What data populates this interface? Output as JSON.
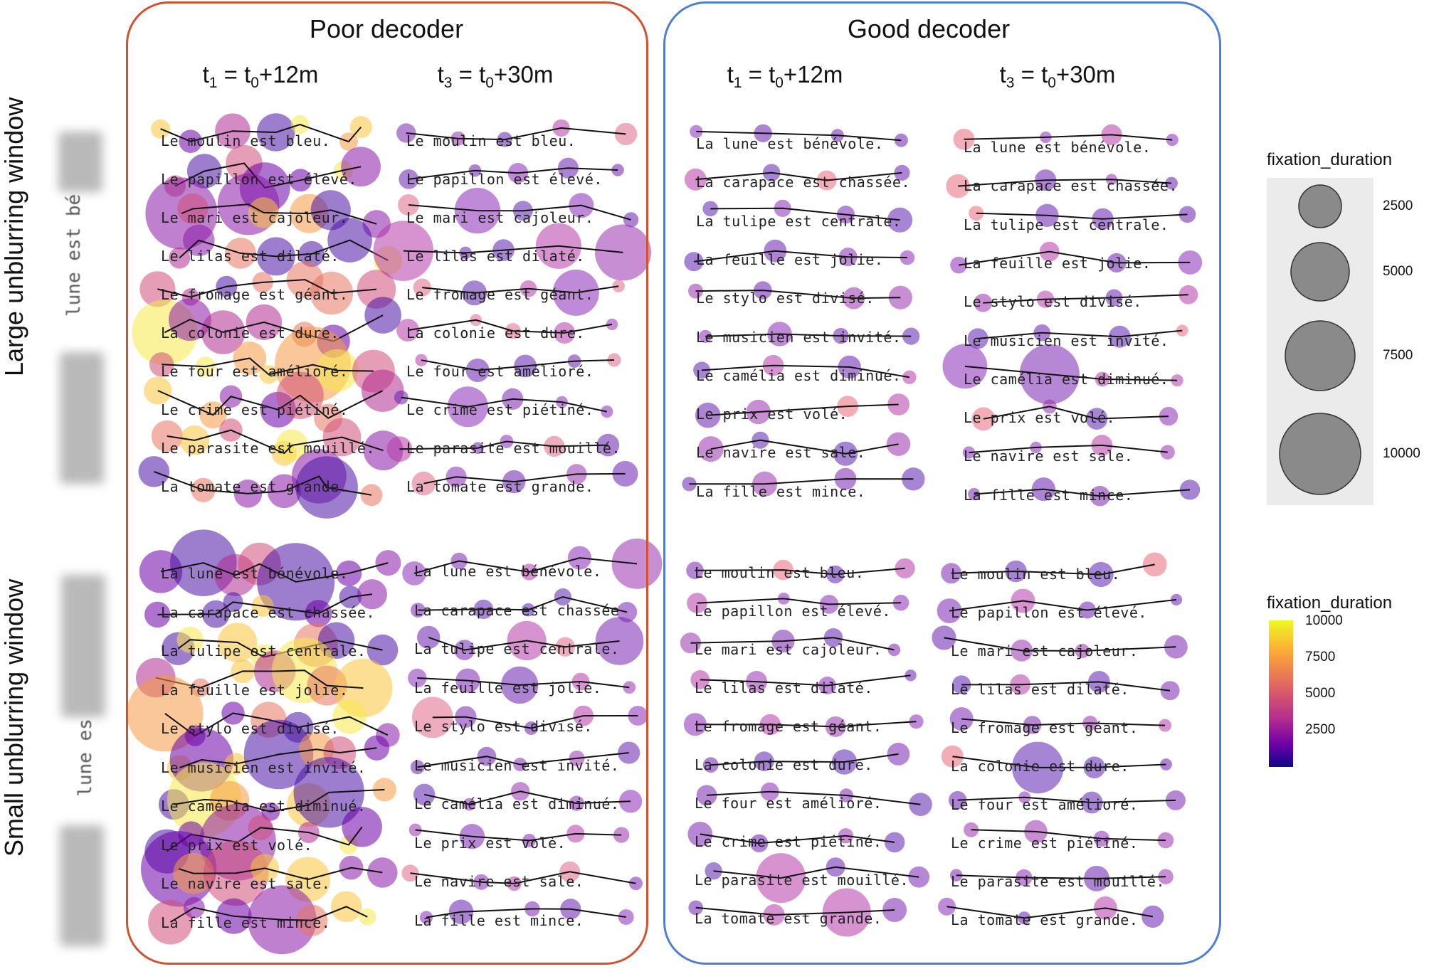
{
  "panels": {
    "poor": {
      "title": "Poor decoder",
      "color": "#d2512f"
    },
    "good": {
      "title": "Good decoder",
      "color": "#4f7fd1"
    }
  },
  "time_labels": {
    "t1": {
      "t": "t",
      "tsub": "1",
      "eq": " = t",
      "t0sub": "0",
      "plus": "+12m"
    },
    "t3": {
      "t": "t",
      "tsub": "3",
      "eq": " = t",
      "t0sub": "0",
      "plus": "+30m"
    }
  },
  "row_titles": {
    "large": "Large unblurring window",
    "small": "Small unblurring window"
  },
  "blur_examples": {
    "large": "lune est bé",
    "small": "lune es"
  },
  "sentences": {
    "poor_large_t1": [
      "Le moulin est bleu.",
      "Le papillon est élevé.",
      "Le mari est cajoleur.",
      "Le lilas est dilaté.",
      "Le fromage est géant.",
      "La colonie est dure.",
      "Le four est amélioré.",
      "Le crime est piétiné.",
      "Le parasite est mouillé.",
      "La tomate est grande."
    ],
    "poor_large_t3": [
      "Le moulin est bleu.",
      "Le papillon est élevé.",
      "Le mari est cajoleur.",
      "Le lilas est dilaté.",
      "Le fromage est géant.",
      "La colonie est dure.",
      "Le four est amélioré.",
      "Le crime est piétiné.",
      "Le parasite est mouillé.",
      "La tomate est grande."
    ],
    "poor_small_t1": [
      "La lune est bénévole.",
      "La carapace est chassée.",
      "La tulipe est centrale.",
      "La feuille est jolie.",
      "Le stylo est divisé.",
      "Le musicien est invité.",
      "Le camélia est diminué.",
      "Le prix est volé.",
      "Le navire est sale.",
      "La fille est mince."
    ],
    "poor_small_t3": [
      "La lune est bénévole.",
      "La carapace est chassée",
      "La tulipe est centrale.",
      "La feuille est jolie.",
      "Le stylo est divisé.",
      "Le musicien est invité.",
      "Le camélia est diminué.",
      "Le prix est volé.",
      "Le navire est sale.",
      "La fille est mince."
    ],
    "good_large_t1": [
      "La lune est bénévole.",
      "La carapace est chassée.",
      "La tulipe est centrale.",
      "La feuille est jolie.",
      "Le stylo est divisé.",
      "Le musicien est invité.",
      "Le camélia est diminué.",
      "Le prix est volé.",
      "Le navire est sale.",
      "La fille est mince."
    ],
    "good_large_t3": [
      "La lune est bénévole.",
      "La carapace est chassée.",
      "La tulipe est centrale.",
      "La feuille est jolie.",
      "Le stylo est divisé.",
      "Le musicien est invité.",
      "Le camélia est diminué.",
      "Le prix est volé.",
      "Le navire est sale.",
      "La fille est mince."
    ],
    "good_small_t1": [
      "Le moulin est bleu.",
      "Le papillon est élevé.",
      "Le mari est cajoleur.",
      "Le lilas est dilaté.",
      "Le fromage est géant.",
      "La colonie est dure.",
      "Le four est amélioré.",
      "Le crime est piétiné.",
      "Le parasite est mouillé.",
      "La tomate est grande."
    ],
    "good_small_t3": [
      "Le moulin est bleu.",
      "Le papillon est élevé.",
      "Le mari est cajoleur.",
      "Le lilas est dilaté.",
      "Le fromage est géant.",
      "La colonie est dure.",
      "Le four est amélioré.",
      "Le crime est piétiné.",
      "Le parasite est mouillé.",
      "La tomate est grande."
    ]
  },
  "legend": {
    "size": {
      "title": "fixation_duration",
      "values": [
        2500,
        5000,
        7500,
        10000
      ],
      "labels": [
        "2500",
        "5000",
        "7500",
        "10000"
      ]
    },
    "color": {
      "title": "fixation_duration",
      "labels": [
        "10000",
        "7500",
        "5000",
        "2500"
      ],
      "stops": [
        "#0d0887",
        "#6a00a8",
        "#b12a90",
        "#e16462",
        "#fca636",
        "#f0f921"
      ]
    }
  },
  "scanpaths": [
    {
      "name": "poor_large_t1",
      "seed": 11,
      "profile": "poor-heavy",
      "n": 7
    },
    {
      "name": "poor_large_t3",
      "seed": 23,
      "profile": "poor-light",
      "n": 5
    },
    {
      "name": "poor_small_t1",
      "seed": 37,
      "profile": "poor-heavy",
      "n": 7
    },
    {
      "name": "poor_small_t3",
      "seed": 41,
      "profile": "poor-light",
      "n": 5
    },
    {
      "name": "good_large_t1",
      "seed": 53,
      "profile": "good",
      "n": 4
    },
    {
      "name": "good_large_t3",
      "seed": 67,
      "profile": "good",
      "n": 4
    },
    {
      "name": "good_small_t1",
      "seed": 71,
      "profile": "good",
      "n": 4
    },
    {
      "name": "good_small_t3",
      "seed": 83,
      "profile": "good",
      "n": 4
    }
  ]
}
